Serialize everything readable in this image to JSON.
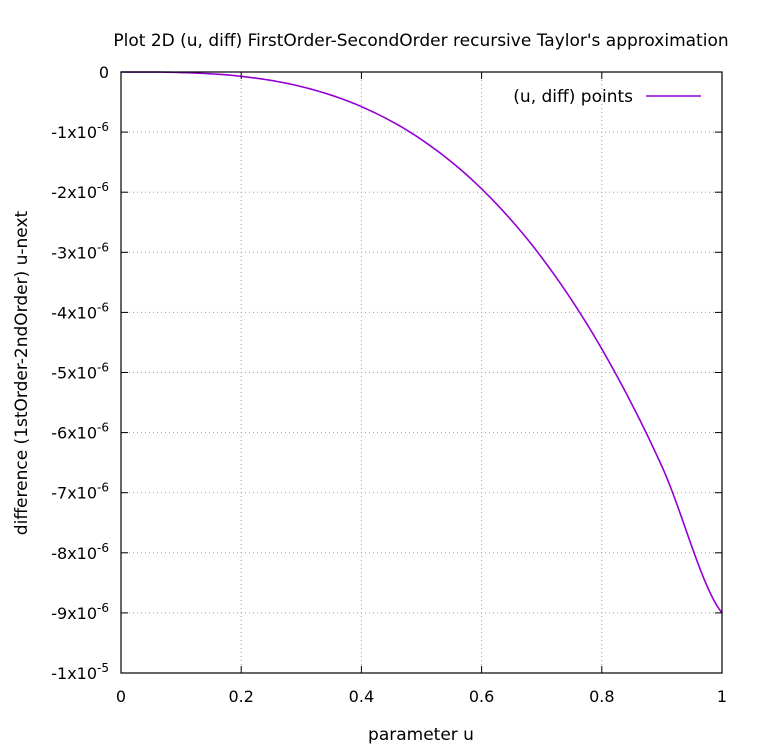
{
  "chart_data": {
    "type": "line",
    "title": "Plot 2D (u, diff) FirstOrder-SecondOrder recursive Taylor's approximation",
    "xlabel": "parameter u",
    "ylabel": "difference (1stOrder-2ndOrder) u-next",
    "xlim": [
      0,
      1
    ],
    "ylim": [
      -1e-05,
      0
    ],
    "grid": true,
    "legend_position": "top-right",
    "x_ticks": [
      {
        "value": 0,
        "label": "0"
      },
      {
        "value": 0.2,
        "label": "0.2"
      },
      {
        "value": 0.4,
        "label": "0.4"
      },
      {
        "value": 0.6,
        "label": "0.6"
      },
      {
        "value": 0.8,
        "label": "0.8"
      },
      {
        "value": 1,
        "label": "1"
      }
    ],
    "y_ticks": [
      {
        "value": 0,
        "mantissa": "0",
        "exp": ""
      },
      {
        "value": -1e-06,
        "mantissa": "-1x10",
        "exp": "-6"
      },
      {
        "value": -2e-06,
        "mantissa": "-2x10",
        "exp": "-6"
      },
      {
        "value": -3e-06,
        "mantissa": "-3x10",
        "exp": "-6"
      },
      {
        "value": -4e-06,
        "mantissa": "-4x10",
        "exp": "-6"
      },
      {
        "value": -5e-06,
        "mantissa": "-5x10",
        "exp": "-6"
      },
      {
        "value": -6e-06,
        "mantissa": "-6x10",
        "exp": "-6"
      },
      {
        "value": -7e-06,
        "mantissa": "-7x10",
        "exp": "-6"
      },
      {
        "value": -8e-06,
        "mantissa": "-8x10",
        "exp": "-6"
      },
      {
        "value": -9e-06,
        "mantissa": "-9x10",
        "exp": "-6"
      },
      {
        "value": -1e-05,
        "mantissa": "-1x10",
        "exp": "-5"
      }
    ],
    "series": [
      {
        "name": "(u, diff) points",
        "color": "#9400d3",
        "x": [
          0,
          0.1,
          0.2,
          0.3,
          0.4,
          0.5,
          0.6,
          0.7,
          0.8,
          0.9,
          1.0
        ],
        "y": [
          0,
          -9e-09,
          -7.2e-08,
          -2.43e-07,
          -5.76e-07,
          -1.125e-06,
          -1.944e-06,
          -3.087e-06,
          -4.608e-06,
          -6.561e-06,
          -9e-06
        ]
      }
    ]
  }
}
